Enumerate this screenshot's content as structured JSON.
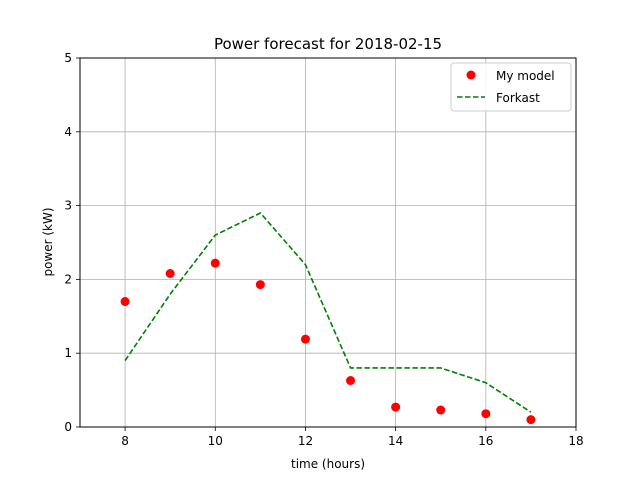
{
  "chart_data": {
    "type": "line",
    "title": "Power forecast for 2018-02-15",
    "xlabel": "time (hours)",
    "ylabel": "power (kW)",
    "xlim": [
      7,
      18
    ],
    "ylim": [
      0,
      5
    ],
    "xticks": [
      8,
      10,
      12,
      14,
      16,
      18
    ],
    "yticks": [
      0,
      1,
      2,
      3,
      4,
      5
    ],
    "grid": true,
    "legend_position": "top-right",
    "series": [
      {
        "name": "My model",
        "kind": "scatter",
        "color": "#ff0000",
        "x": [
          8,
          9,
          10,
          11,
          12,
          13,
          14,
          15,
          16,
          17
        ],
        "y": [
          1.7,
          2.08,
          2.22,
          1.93,
          1.19,
          0.63,
          0.27,
          0.23,
          0.18,
          0.1
        ]
      },
      {
        "name": "Forkast",
        "kind": "dashed-line",
        "color": "#008000",
        "x": [
          8,
          9,
          10,
          11,
          12,
          13,
          14,
          15,
          16,
          17
        ],
        "y": [
          0.9,
          1.8,
          2.6,
          2.9,
          2.2,
          0.8,
          0.8,
          0.8,
          0.6,
          0.2
        ]
      }
    ]
  }
}
